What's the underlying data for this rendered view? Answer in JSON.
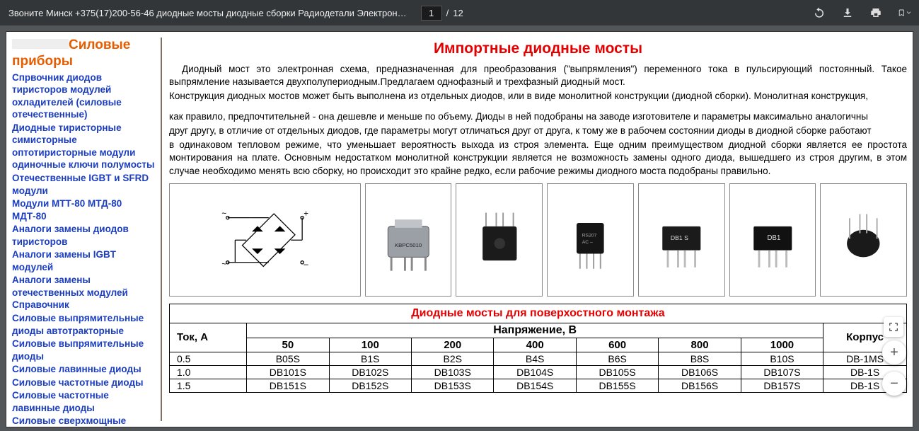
{
  "toolbar": {
    "title": "Звоните Минск +375(17)200-56-46 диодные мосты диодные сборки Радиодетали Электрон…",
    "page_current": "1",
    "page_sep": "/",
    "page_total": "12"
  },
  "sidebar": {
    "heading": "Силовые приборы",
    "links": [
      "Спрвочник диодов тиристоров модулей охладителей (силовые отечественные)",
      "Диодные тиристорные симисторные оптотиристорные модули одиночные ключи полумосты",
      "Отечественные IGBT и SFRD модули",
      "Модули МТТ-80 МТД-80 МДТ-80",
      "Аналоги замены диодов тиристоров",
      "Аналоги замены IGBT модулей",
      "Аналоги замены отечественных модулей Справочник",
      "Силовые выпрямительные диоды автотракторные",
      "Силовые выпрямительные диоды",
      "Силовые лавинные диоды",
      "Силовые частотные диоды",
      "Силовые частотные лавинные диоды",
      "Силовые сверхмощные диоды"
    ]
  },
  "content": {
    "h1": "Импортные диодные мосты",
    "p1": "Диодный мост это электронная схема, предназначенная для преобразования (\"выпрямления\") переменного тока в пульсирующий постоянный. Такое выпрямление называется двухполупериодным.Предлагаем однофазный и трехфазный диодный мост.",
    "p2": "Конструкция диодных мостов может быть выполнена из отдельных диодов, или в виде монолитной конструкции (диодной сборки). Монолитная конструкция,",
    "p3": "как правило, предпочтительней - она дешевле и меньше по объему. Диоды в ней подобраны на заводе изготовителе и параметры максимально аналогичны",
    "p4": "друг другу, в отличие от отдельных диодов, где параметры могут отличаться друг от друга, к тому же в рабочем состоянии диоды в диодной сборке работают",
    "p5": "в одинаковом тепловом режиме, что уменьшает вероятность выхода из строя элемента. Еще одним преимуществом диодной сборки является ее простота монтирования на плате. Основным недостатком монолитной конструкции является не возможность замены одного диода, вышедшего из строя другим, в этом случае необходимо менять всю сборку, но происходит это крайне редко, если рабочие режимы диодного моста подобраны правильно."
  },
  "images": {
    "items": [
      "schematic",
      "bridge-kbpc",
      "bridge-black-sq",
      "bridge-rs207",
      "bridge-db1-silver",
      "bridge-db1-black",
      "bridge-round"
    ],
    "schematic_labels": {
      "ac": "~",
      "plus": "+",
      "minus": "–"
    }
  },
  "table": {
    "title": "Диодные мосты для поверхостного монтажа",
    "row_header": "Ток, A",
    "voltage_header": "Напряжение, В",
    "case_header": "Корпус",
    "voltage_cols": [
      "50",
      "100",
      "200",
      "400",
      "600",
      "800",
      "1000"
    ],
    "rows": [
      {
        "amp": "0.5",
        "cells": [
          "B05S",
          "B1S",
          "B2S",
          "B4S",
          "B6S",
          "B8S",
          "B10S"
        ],
        "case": "DB-1MS"
      },
      {
        "amp": "1.0",
        "cells": [
          "DB101S",
          "DB102S",
          "DB103S",
          "DB104S",
          "DB105S",
          "DB106S",
          "DB107S"
        ],
        "case": "DB-1S"
      },
      {
        "amp": "1.5",
        "cells": [
          "DB151S",
          "DB152S",
          "DB153S",
          "DB154S",
          "DB155S",
          "DB156S",
          "DB157S"
        ],
        "case": "DB-1S"
      }
    ]
  },
  "colors": {
    "accent_orange": "#e85c00",
    "accent_red": "#e30000",
    "link_blue": "#1b3dbf",
    "toolbar_bg": "#323639",
    "page_bg": "#525659"
  }
}
